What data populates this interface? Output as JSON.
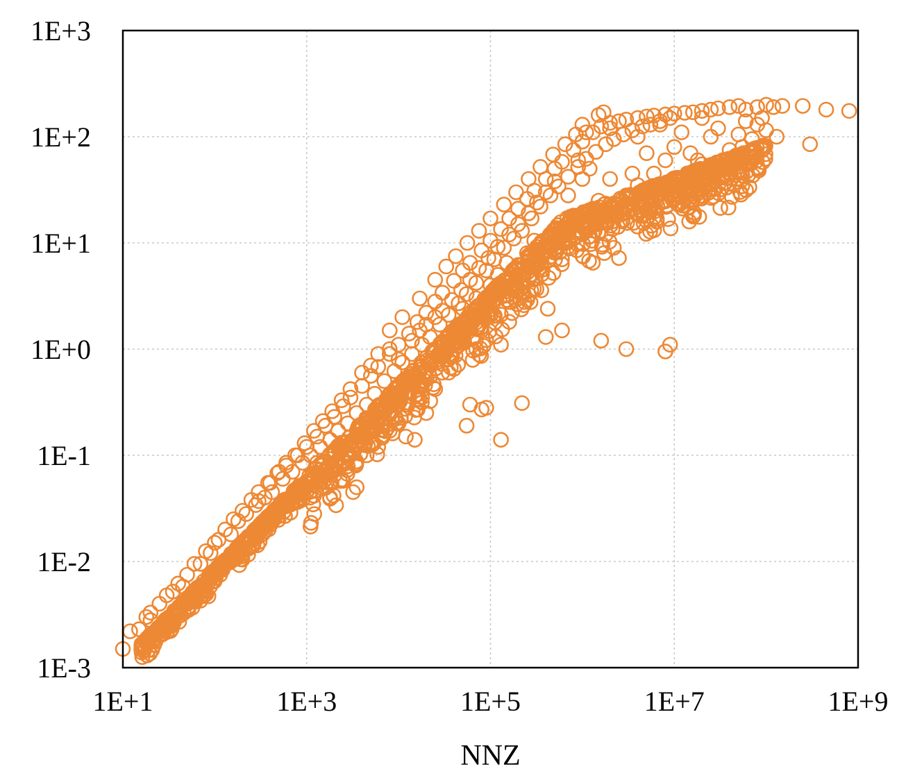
{
  "chart_data": {
    "type": "scatter",
    "title": "",
    "xlabel": "NNZ",
    "ylabel": "",
    "x_scale": "log",
    "y_scale": "log",
    "xlim": [
      10,
      1000000000
    ],
    "ylim": [
      0.001,
      1000
    ],
    "x_ticks": [
      10,
      1000,
      100000,
      10000000,
      1000000000
    ],
    "x_tick_labels": [
      "1E+1",
      "1E+3",
      "1E+5",
      "1E+7",
      "1E+9"
    ],
    "y_ticks": [
      0.001,
      0.01,
      0.1,
      1,
      10,
      100,
      1000
    ],
    "y_tick_labels": [
      "1E-3",
      "1E-2",
      "1E-1",
      "1E+0",
      "1E+1",
      "1E+2",
      "1E+3"
    ],
    "grid": true,
    "legend": "none",
    "marker": "open-circle",
    "color": "#ED8834",
    "points": [
      [
        10,
        0.0015
      ],
      [
        12,
        0.0022
      ],
      [
        15,
        0.0023
      ],
      [
        18,
        0.003
      ],
      [
        20,
        0.0033
      ],
      [
        25,
        0.004
      ],
      [
        30,
        0.0048
      ],
      [
        40,
        0.0062
      ],
      [
        50,
        0.0075
      ],
      [
        60,
        0.0095
      ],
      [
        80,
        0.0125
      ],
      [
        100,
        0.015
      ],
      [
        130,
        0.02
      ],
      [
        160,
        0.025
      ],
      [
        200,
        0.03
      ],
      [
        250,
        0.038
      ],
      [
        300,
        0.045
      ],
      [
        400,
        0.055
      ],
      [
        500,
        0.07
      ],
      [
        600,
        0.08
      ],
      [
        800,
        0.1
      ],
      [
        1000,
        0.12
      ],
      [
        1300,
        0.15
      ],
      [
        1600,
        0.19
      ],
      [
        2000,
        0.23
      ],
      [
        2500,
        0.29
      ],
      [
        3000,
        0.35
      ],
      [
        4000,
        0.45
      ],
      [
        5000,
        0.56
      ],
      [
        6000,
        0.68
      ],
      [
        8000,
        0.9
      ],
      [
        10000,
        1.1
      ],
      [
        13000,
        1.4
      ],
      [
        16000,
        1.8
      ],
      [
        20000,
        2.2
      ],
      [
        25000,
        2.8
      ],
      [
        30000,
        3.4
      ],
      [
        40000,
        4.4
      ],
      [
        50000,
        5.5
      ],
      [
        60000,
        6.5
      ],
      [
        80000,
        8.5
      ],
      [
        100000,
        10.5
      ],
      [
        130000,
        13.5
      ],
      [
        160000,
        17
      ],
      [
        200000,
        21
      ],
      [
        250000,
        26
      ],
      [
        300000,
        31
      ],
      [
        400000,
        40
      ],
      [
        500000,
        50
      ],
      [
        600000,
        58
      ],
      [
        800000,
        75
      ],
      [
        1000000,
        90
      ],
      [
        1300000,
        110
      ],
      [
        1600000,
        125
      ],
      [
        2000000,
        135
      ],
      [
        2500000,
        140
      ],
      [
        3000000,
        145
      ],
      [
        4000000,
        150
      ],
      [
        5000000,
        155
      ],
      [
        6000000,
        158
      ],
      [
        8000000,
        162
      ],
      [
        10000000,
        165
      ],
      [
        13000000,
        168
      ],
      [
        16000000,
        170
      ],
      [
        20000000,
        175
      ],
      [
        25000000,
        180
      ],
      [
        30000000,
        185
      ],
      [
        40000000,
        190
      ],
      [
        50000000,
        195
      ],
      [
        60000000,
        180
      ],
      [
        80000000,
        190
      ],
      [
        100000000,
        200
      ],
      [
        120000000,
        190
      ],
      [
        150000000,
        195
      ],
      [
        250000000,
        195
      ],
      [
        450000000,
        180
      ],
      [
        800000000,
        175
      ],
      [
        20,
        0.0028
      ],
      [
        35,
        0.0052
      ],
      [
        45,
        0.0058
      ],
      [
        70,
        0.0095
      ],
      [
        90,
        0.012
      ],
      [
        110,
        0.016
      ],
      [
        150,
        0.018
      ],
      [
        180,
        0.024
      ],
      [
        220,
        0.028
      ],
      [
        280,
        0.034
      ],
      [
        350,
        0.04
      ],
      [
        420,
        0.045
      ],
      [
        550,
        0.06
      ],
      [
        700,
        0.07
      ],
      [
        900,
        0.085
      ],
      [
        1100,
        0.1
      ],
      [
        1400,
        0.12
      ],
      [
        1800,
        0.14
      ],
      [
        2200,
        0.17
      ],
      [
        2800,
        0.2
      ],
      [
        3500,
        0.25
      ],
      [
        4500,
        0.3
      ],
      [
        5500,
        0.38
      ],
      [
        7000,
        0.5
      ],
      [
        9000,
        0.62
      ],
      [
        11000,
        0.75
      ],
      [
        14000,
        0.9
      ],
      [
        18000,
        1.1
      ],
      [
        22000,
        1.3
      ],
      [
        28000,
        1.7
      ],
      [
        35000,
        2.1
      ],
      [
        45000,
        2.7
      ],
      [
        55000,
        3.3
      ],
      [
        70000,
        4.2
      ],
      [
        90000,
        5.5
      ],
      [
        110000,
        7
      ],
      [
        140000,
        9
      ],
      [
        180000,
        11
      ],
      [
        220000,
        13
      ],
      [
        280000,
        17
      ],
      [
        350000,
        22
      ],
      [
        450000,
        28
      ],
      [
        550000,
        34
      ],
      [
        700000,
        42
      ],
      [
        900000,
        52
      ],
      [
        1100000,
        62
      ],
      [
        1400000,
        72
      ],
      [
        1800000,
        85
      ],
      [
        2200000,
        95
      ],
      [
        2800000,
        105
      ],
      [
        3500000,
        115
      ],
      [
        4500000,
        125
      ],
      [
        5500000,
        130
      ],
      [
        7000000,
        140
      ],
      [
        9000000,
        150
      ],
      [
        300,
        0.037
      ],
      [
        1000,
        0.055
      ],
      [
        1500,
        0.07
      ],
      [
        1800,
        0.04
      ],
      [
        1800,
        0.039
      ],
      [
        3200,
        0.045
      ],
      [
        3500,
        0.05
      ],
      [
        2000,
        0.065
      ],
      [
        3000,
        0.1
      ],
      [
        4500,
        0.1
      ],
      [
        5000,
        0.13
      ],
      [
        6000,
        0.12
      ],
      [
        8000,
        0.17
      ],
      [
        12000,
        0.15
      ],
      [
        15000,
        0.14
      ],
      [
        10000,
        0.2
      ],
      [
        20000,
        0.25
      ],
      [
        12000,
        0.3
      ],
      [
        18000,
        0.35
      ],
      [
        25000,
        0.42
      ],
      [
        30000,
        0.6
      ],
      [
        40000,
        0.65
      ],
      [
        22000,
        0.55
      ],
      [
        35000,
        0.8
      ],
      [
        60000,
        0.3
      ],
      [
        55000,
        0.19
      ],
      [
        90000,
        0.28
      ],
      [
        80000,
        0.27
      ],
      [
        130000,
        0.14
      ],
      [
        220000,
        0.31
      ],
      [
        70000,
        1.0
      ],
      [
        80000,
        1.5
      ],
      [
        130000,
        1.1
      ],
      [
        90000,
        2.7
      ],
      [
        150000,
        2.9
      ],
      [
        150000,
        3.5
      ],
      [
        200000,
        6.2
      ],
      [
        250000,
        8.0
      ],
      [
        150000,
        6.5
      ],
      [
        300000,
        10.5
      ],
      [
        400000,
        1.3
      ],
      [
        420000,
        2.4
      ],
      [
        600000,
        1.5
      ],
      [
        600000,
        7.0
      ],
      [
        650000,
        11
      ],
      [
        1300000,
        6.5
      ],
      [
        2200000,
        9.0
      ],
      [
        2500000,
        7.2
      ],
      [
        1600000,
        1.2
      ],
      [
        3000000,
        1.0
      ],
      [
        8000000,
        0.95
      ],
      [
        9000000,
        1.1
      ],
      [
        700000,
        28
      ],
      [
        1500000,
        25
      ],
      [
        3000000,
        28
      ],
      [
        4000000,
        35
      ],
      [
        6000000,
        45
      ],
      [
        8000000,
        60
      ],
      [
        15000000,
        70
      ],
      [
        18000000,
        60
      ],
      [
        20000000,
        55
      ],
      [
        35000000,
        55
      ],
      [
        45000000,
        35
      ],
      [
        60000000,
        55
      ],
      [
        65000000,
        58
      ],
      [
        40000000,
        75
      ],
      [
        55000000,
        80
      ],
      [
        70000000,
        95
      ],
      [
        100000000,
        115
      ],
      [
        130000000,
        100
      ],
      [
        300000000,
        85
      ],
      [
        1000000,
        40
      ],
      [
        1200000,
        50
      ],
      [
        2000000,
        40
      ],
      [
        3500000,
        45
      ],
      [
        5000000,
        70
      ],
      [
        10000000,
        80
      ],
      [
        12000000,
        110
      ],
      [
        25000000,
        100
      ],
      [
        30000000,
        120
      ],
      [
        50000000,
        105
      ],
      [
        60000000,
        140
      ],
      [
        80000000,
        130
      ],
      [
        1000000,
        130
      ],
      [
        1500000,
        160
      ],
      [
        1700000,
        170
      ],
      [
        900000,
        60
      ],
      [
        1100000,
        110
      ],
      [
        2000000,
        120
      ],
      [
        4000000,
        100
      ],
      [
        7000000,
        130
      ],
      [
        20000000,
        150
      ],
      [
        90000000,
        150
      ],
      [
        5000,
        0.7
      ],
      [
        6000,
        0.9
      ],
      [
        8000,
        1.0
      ],
      [
        10000,
        0.8
      ],
      [
        14000,
        1.2
      ],
      [
        17000,
        1.5
      ],
      [
        20000,
        1.7
      ],
      [
        25000,
        2.0
      ],
      [
        30000,
        2.3
      ],
      [
        38000,
        2.9
      ],
      [
        48000,
        3.6
      ],
      [
        60000,
        4.5
      ],
      [
        75000,
        5.8
      ],
      [
        95000,
        7.2
      ],
      [
        120000,
        9.2
      ],
      [
        160000,
        12
      ],
      [
        200000,
        15
      ],
      [
        260000,
        19
      ],
      [
        320000,
        24
      ],
      [
        400000,
        30
      ],
      [
        500000,
        38
      ],
      [
        4000,
        0.6
      ],
      [
        3000,
        0.42
      ],
      [
        2400,
        0.33
      ],
      [
        1900,
        0.26
      ],
      [
        1500,
        0.21
      ],
      [
        1200,
        0.17
      ],
      [
        950,
        0.13
      ],
      [
        750,
        0.1
      ],
      [
        600,
        0.085
      ],
      [
        480,
        0.068
      ],
      [
        380,
        0.055
      ],
      [
        45000,
        1.2
      ],
      [
        60000,
        1.6
      ],
      [
        50000,
        2.4
      ],
      [
        70000,
        3.0
      ],
      [
        100000,
        4.0
      ],
      [
        120000,
        5.0
      ],
      [
        28000,
        0.9
      ],
      [
        40000,
        1.4
      ],
      [
        2500,
        0.12
      ],
      [
        4000,
        0.18
      ],
      [
        6500,
        0.25
      ],
      [
        9000,
        0.35
      ],
      [
        15000,
        0.5
      ],
      [
        20000,
        0.62
      ],
      [
        2200,
        0.09
      ],
      [
        1300,
        0.085
      ],
      [
        17000,
        3.0
      ],
      [
        25000,
        4.5
      ],
      [
        33000,
        6.0
      ],
      [
        42000,
        7.5
      ],
      [
        56000,
        10
      ],
      [
        75000,
        13
      ],
      [
        100000,
        17
      ],
      [
        140000,
        23
      ],
      [
        190000,
        30
      ],
      [
        260000,
        40
      ],
      [
        350000,
        52
      ],
      [
        480000,
        68
      ],
      [
        650000,
        85
      ],
      [
        850000,
        105
      ],
      [
        8000,
        1.5
      ],
      [
        11000,
        2.0
      ]
    ]
  }
}
